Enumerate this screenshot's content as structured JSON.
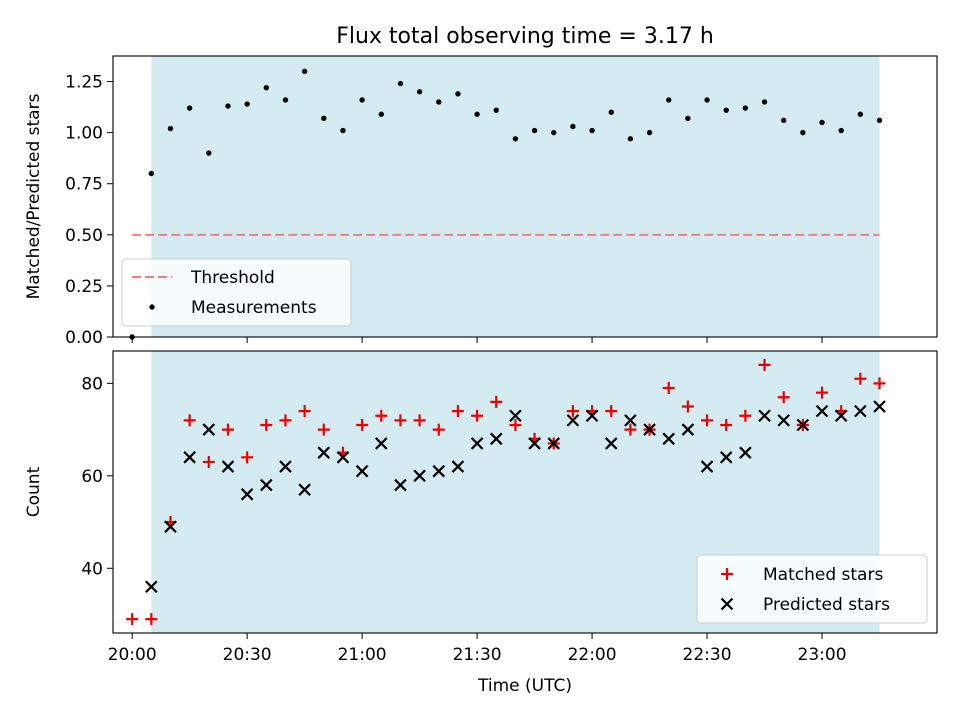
{
  "chart_data": [
    {
      "type": "scatter",
      "title": "Flux total observing time = 3.17 h",
      "ylabel": "Matched/Predicted stars",
      "xlabel": "",
      "ylim": [
        0,
        1.375
      ],
      "yticks": [
        0.0,
        0.25,
        0.5,
        0.75,
        1.0,
        1.25
      ],
      "ytick_labels": [
        "0.00",
        "0.25",
        "0.50",
        "0.75",
        "1.00",
        "1.25"
      ],
      "shaded_range": [
        "20:05",
        "23:15"
      ],
      "shade_color": "#d3ebf1",
      "legend_loc": "lower-left",
      "threshold": {
        "name": "Threshold",
        "value": 0.5,
        "color": "#f08080"
      },
      "series": [
        {
          "name": "Measurements",
          "color": "#000000",
          "x": [
            "20:00",
            "20:05",
            "20:10",
            "20:15",
            "20:20",
            "20:25",
            "20:30",
            "20:35",
            "20:40",
            "20:45",
            "20:50",
            "20:55",
            "21:00",
            "21:05",
            "21:10",
            "21:15",
            "21:20",
            "21:25",
            "21:30",
            "21:35",
            "21:40",
            "21:45",
            "21:50",
            "21:55",
            "22:00",
            "22:05",
            "22:10",
            "22:15",
            "22:20",
            "22:25",
            "22:30",
            "22:35",
            "22:40",
            "22:45",
            "22:50",
            "22:55",
            "23:00",
            "23:05",
            "23:10",
            "23:15"
          ],
          "y": [
            0.0,
            0.8,
            1.02,
            1.12,
            0.9,
            1.13,
            1.14,
            1.22,
            1.16,
            1.3,
            1.07,
            1.01,
            1.16,
            1.09,
            1.24,
            1.2,
            1.15,
            1.19,
            1.09,
            1.11,
            0.97,
            1.01,
            1.0,
            1.03,
            1.01,
            1.1,
            0.97,
            1.0,
            1.16,
            1.07,
            1.16,
            1.11,
            1.12,
            1.15,
            1.06,
            1.0,
            1.05,
            1.01,
            1.09,
            1.06
          ]
        }
      ]
    },
    {
      "type": "scatter",
      "title": "",
      "ylabel": "Count",
      "xlabel": "Time (UTC)",
      "ylim": [
        26,
        87
      ],
      "yticks": [
        40,
        60,
        80
      ],
      "ytick_labels": [
        "40",
        "60",
        "80"
      ],
      "xlim": [
        "19:55",
        "23:30"
      ],
      "xticks": [
        "20:00",
        "20:30",
        "21:00",
        "21:30",
        "22:00",
        "22:30",
        "23:00"
      ],
      "xtick_labels": [
        "20:00",
        "20:30",
        "21:00",
        "21:30",
        "22:00",
        "22:30",
        "23:00"
      ],
      "shaded_range": [
        "20:05",
        "23:15"
      ],
      "shade_color": "#d3ebf1",
      "legend_loc": "lower-right",
      "series": [
        {
          "name": "Matched stars",
          "marker": "plus",
          "color": "#ee0000",
          "x": [
            "20:00",
            "20:05",
            "20:10",
            "20:15",
            "20:20",
            "20:25",
            "20:30",
            "20:35",
            "20:40",
            "20:45",
            "20:50",
            "20:55",
            "21:00",
            "21:05",
            "21:10",
            "21:15",
            "21:20",
            "21:25",
            "21:30",
            "21:35",
            "21:40",
            "21:45",
            "21:50",
            "21:55",
            "22:00",
            "22:05",
            "22:10",
            "22:15",
            "22:20",
            "22:25",
            "22:30",
            "22:35",
            "22:40",
            "22:45",
            "22:50",
            "22:55",
            "23:00",
            "23:05",
            "23:10",
            "23:15"
          ],
          "y": [
            29,
            29,
            50,
            72,
            63,
            70,
            64,
            71,
            72,
            74,
            70,
            65,
            71,
            73,
            72,
            72,
            70,
            74,
            73,
            76,
            71,
            68,
            67,
            74,
            74,
            74,
            70,
            70,
            79,
            75,
            72,
            71,
            73,
            84,
            77,
            71,
            78,
            74,
            81,
            80
          ]
        },
        {
          "name": "Predicted stars",
          "marker": "x",
          "color": "#000000",
          "x": [
            "20:05",
            "20:10",
            "20:15",
            "20:20",
            "20:25",
            "20:30",
            "20:35",
            "20:40",
            "20:45",
            "20:50",
            "20:55",
            "21:00",
            "21:05",
            "21:10",
            "21:15",
            "21:20",
            "21:25",
            "21:30",
            "21:35",
            "21:40",
            "21:45",
            "21:50",
            "21:55",
            "22:00",
            "22:05",
            "22:10",
            "22:15",
            "22:20",
            "22:25",
            "22:30",
            "22:35",
            "22:40",
            "22:45",
            "22:50",
            "22:55",
            "23:00",
            "23:05",
            "23:10",
            "23:15"
          ],
          "y": [
            36,
            49,
            64,
            70,
            62,
            56,
            58,
            62,
            57,
            65,
            64,
            61,
            67,
            58,
            60,
            61,
            62,
            67,
            68,
            73,
            67,
            67,
            72,
            73,
            67,
            72,
            70,
            68,
            70,
            62,
            64,
            65,
            73,
            72,
            71,
            74,
            73,
            74,
            75
          ]
        }
      ]
    }
  ]
}
